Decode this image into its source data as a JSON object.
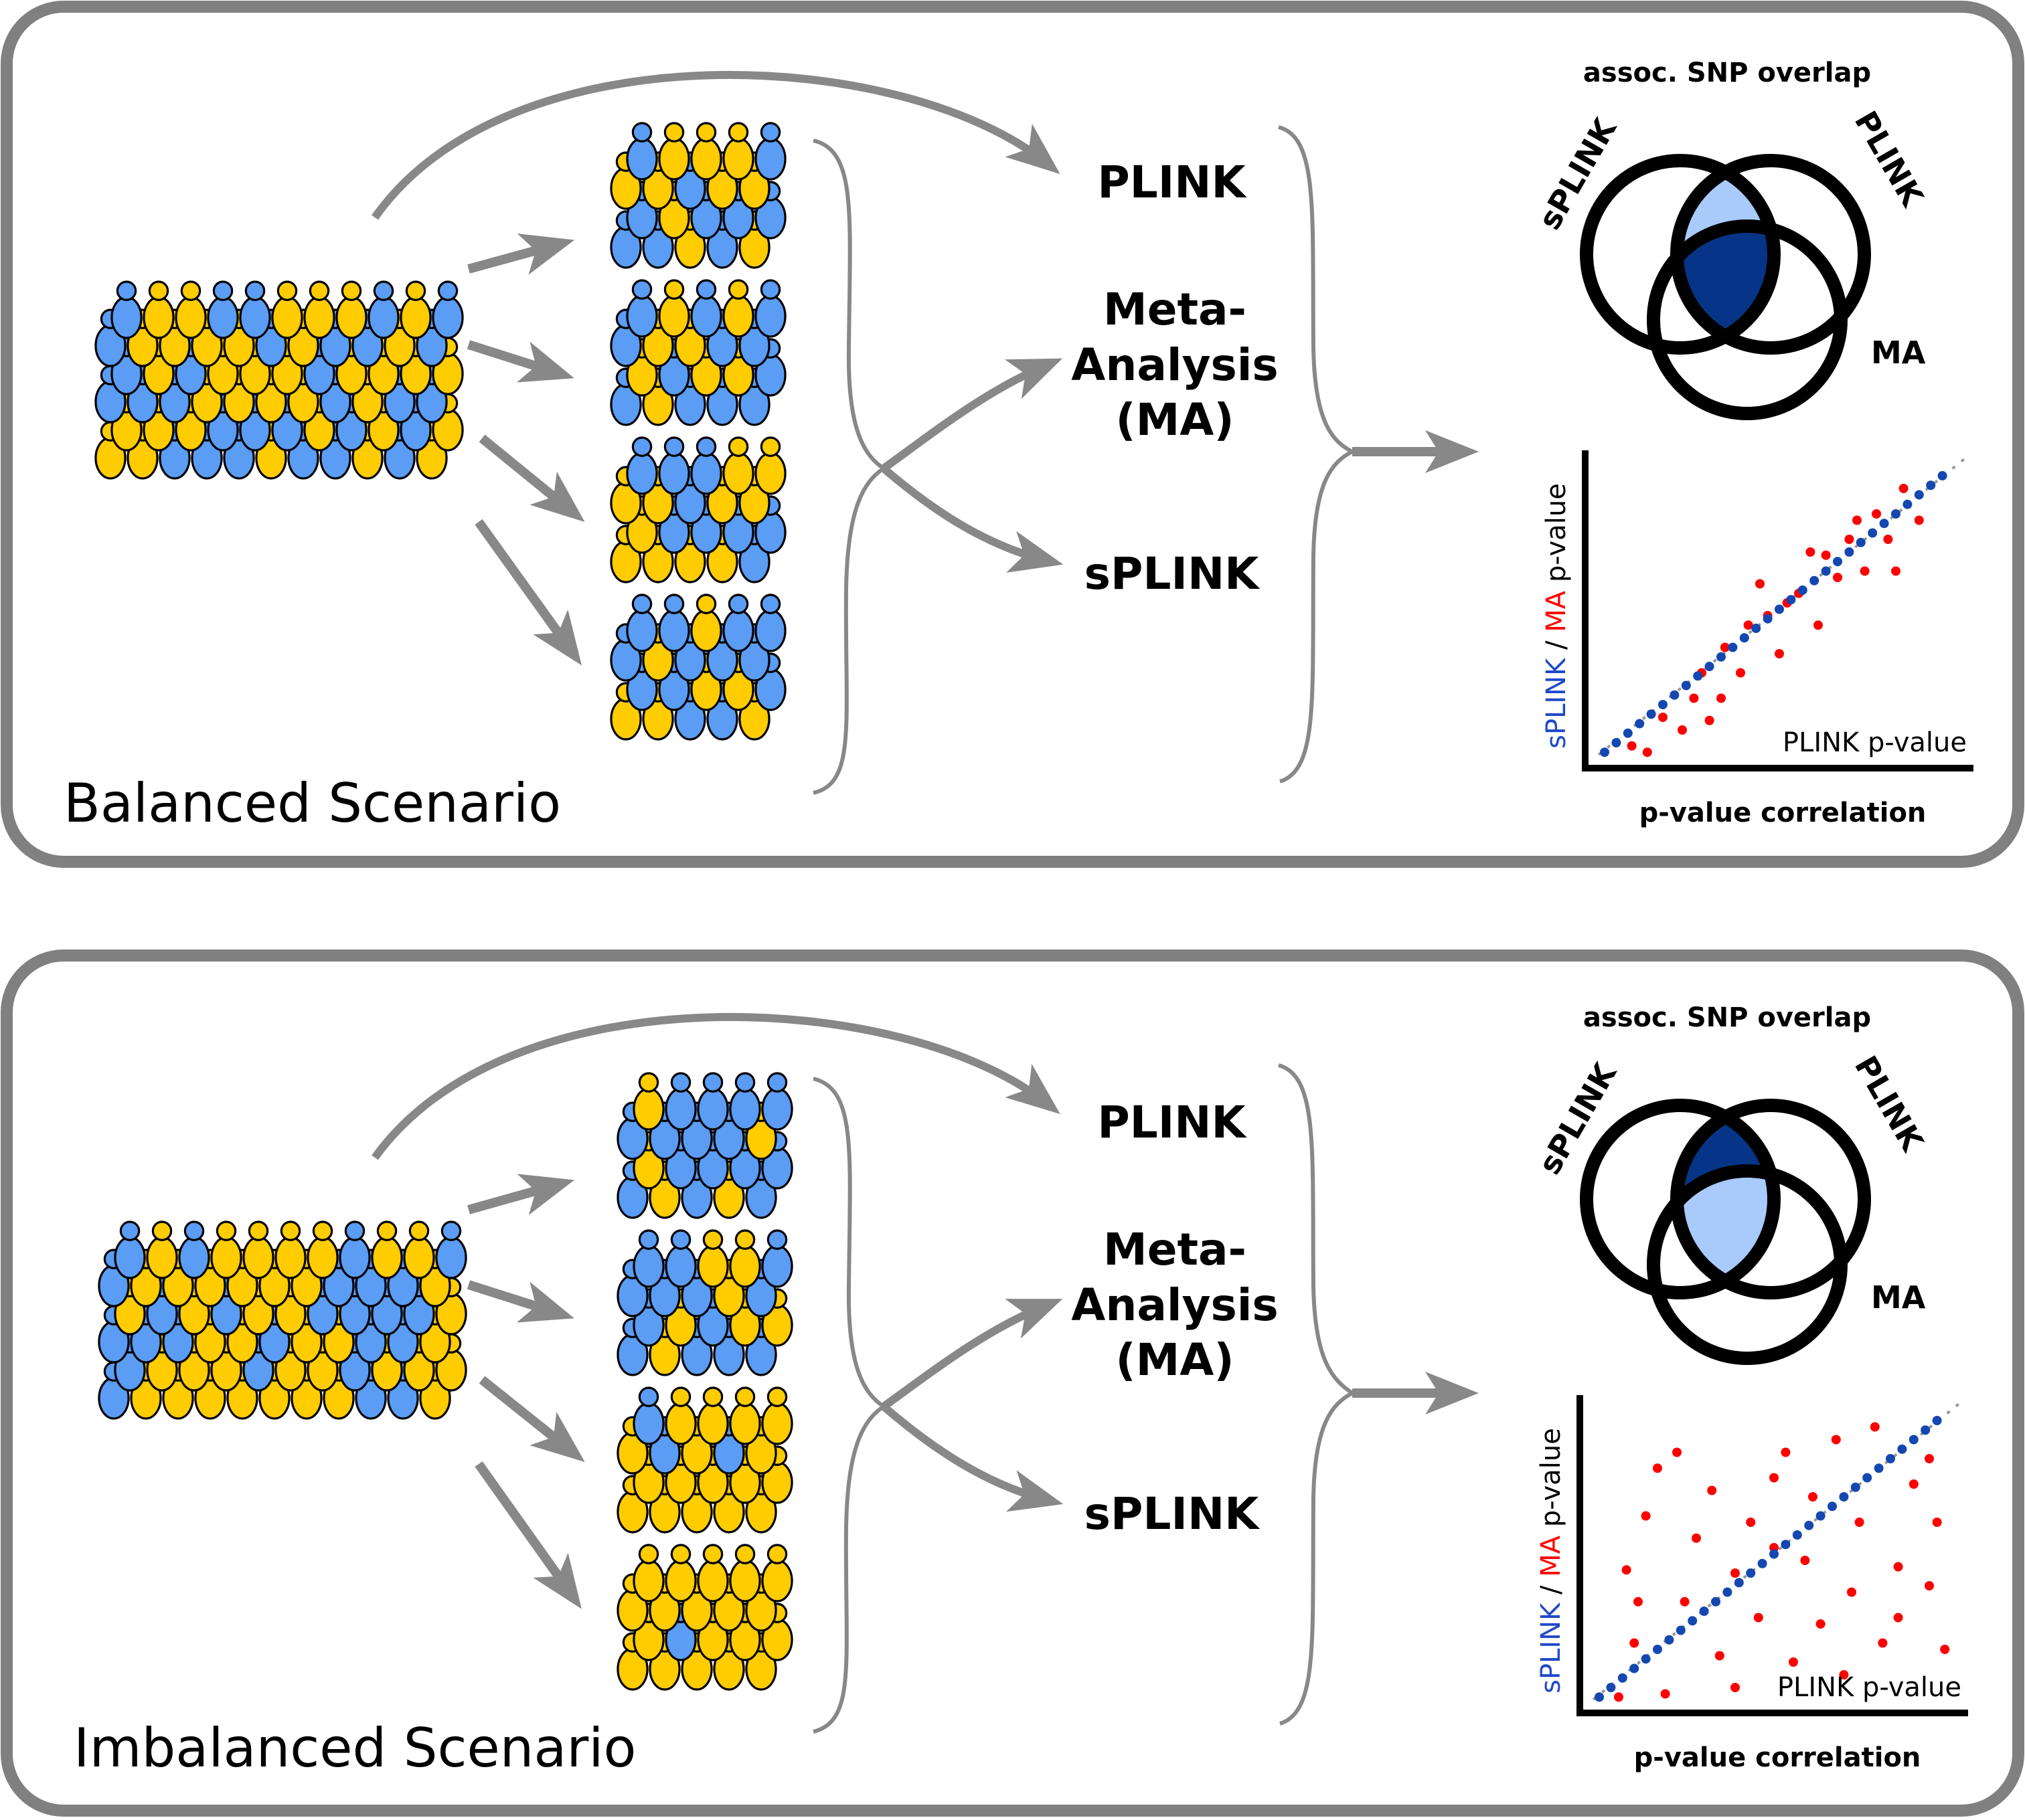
{
  "colors": {
    "frame": "#808080",
    "arrow": "#888888",
    "brace": "#888888",
    "blue_person": "#5b9cf4",
    "yellow_person": "#ffcc00",
    "outline": "#000000",
    "venn_light": "#a9cbfb",
    "venn_dark": "#063587",
    "splink_text": "#1f49c9",
    "ma_text": "#ff0000",
    "blue_dot": "#1448b0",
    "red_dot": "#ff0000"
  },
  "panels": [
    {
      "id": "balanced",
      "scenario_label": "Balanced Scenario",
      "methods": {
        "plink": "PLINK",
        "ma_line1": "Meta-",
        "ma_line2": "Analysis",
        "ma_line3": "(MA)",
        "splink": "sPLINK"
      },
      "venn": {
        "title": "assoc. SNP overlap",
        "label_splink": "sPLINK",
        "label_plink": "PLINK",
        "label_ma": "MA",
        "fills": {
          "splink_plink_only": "light",
          "all_three": "dark"
        }
      },
      "scatter": {
        "ylabel_part1": "sPLINK",
        "ylabel_part2": " / ",
        "ylabel_part3": "MA",
        "ylabel_part4": " p-value",
        "xlabel": "PLINK p-value",
        "caption": "p-value correlation",
        "splink_points": [
          [
            0.05,
            0.05
          ],
          [
            0.08,
            0.08
          ],
          [
            0.11,
            0.11
          ],
          [
            0.14,
            0.14
          ],
          [
            0.17,
            0.17
          ],
          [
            0.2,
            0.2
          ],
          [
            0.23,
            0.23
          ],
          [
            0.26,
            0.26
          ],
          [
            0.29,
            0.29
          ],
          [
            0.32,
            0.32
          ],
          [
            0.35,
            0.35
          ],
          [
            0.38,
            0.38
          ],
          [
            0.41,
            0.41
          ],
          [
            0.44,
            0.44
          ],
          [
            0.47,
            0.47
          ],
          [
            0.5,
            0.5
          ],
          [
            0.53,
            0.53
          ],
          [
            0.56,
            0.56
          ],
          [
            0.59,
            0.59
          ],
          [
            0.62,
            0.62
          ],
          [
            0.65,
            0.65
          ],
          [
            0.68,
            0.68
          ],
          [
            0.71,
            0.71
          ],
          [
            0.74,
            0.74
          ],
          [
            0.77,
            0.77
          ],
          [
            0.8,
            0.8
          ],
          [
            0.83,
            0.83
          ],
          [
            0.86,
            0.86
          ],
          [
            0.89,
            0.89
          ],
          [
            0.92,
            0.92
          ]
        ],
        "ma_points": [
          [
            0.12,
            0.07
          ],
          [
            0.16,
            0.05
          ],
          [
            0.2,
            0.16
          ],
          [
            0.25,
            0.12
          ],
          [
            0.28,
            0.22
          ],
          [
            0.32,
            0.15
          ],
          [
            0.3,
            0.3
          ],
          [
            0.36,
            0.38
          ],
          [
            0.4,
            0.3
          ],
          [
            0.42,
            0.45
          ],
          [
            0.45,
            0.58
          ],
          [
            0.47,
            0.48
          ],
          [
            0.5,
            0.36
          ],
          [
            0.52,
            0.52
          ],
          [
            0.55,
            0.55
          ],
          [
            0.6,
            0.45
          ],
          [
            0.62,
            0.67
          ],
          [
            0.65,
            0.6
          ],
          [
            0.68,
            0.72
          ],
          [
            0.7,
            0.78
          ],
          [
            0.72,
            0.62
          ],
          [
            0.75,
            0.8
          ],
          [
            0.78,
            0.72
          ],
          [
            0.82,
            0.88
          ],
          [
            0.86,
            0.78
          ],
          [
            0.58,
            0.68
          ],
          [
            0.35,
            0.22
          ],
          [
            0.8,
            0.62
          ]
        ]
      }
    },
    {
      "id": "imbalanced",
      "scenario_label": "Imbalanced Scenario",
      "methods": {
        "plink": "PLINK",
        "ma_line1": "Meta-",
        "ma_line2": "Analysis",
        "ma_line3": "(MA)",
        "splink": "sPLINK"
      },
      "venn": {
        "title": "assoc. SNP overlap",
        "label_splink": "sPLINK",
        "label_plink": "PLINK",
        "label_ma": "MA",
        "fills": {
          "splink_plink_only": "dark",
          "all_three": "light"
        }
      },
      "scatter": {
        "ylabel_part1": "sPLINK",
        "ylabel_part2": " / ",
        "ylabel_part3": "MA",
        "ylabel_part4": " p-value",
        "xlabel": "PLINK p-value",
        "caption": "p-value correlation",
        "splink_points": [
          [
            0.05,
            0.05
          ],
          [
            0.08,
            0.08
          ],
          [
            0.11,
            0.11
          ],
          [
            0.14,
            0.14
          ],
          [
            0.17,
            0.17
          ],
          [
            0.2,
            0.2
          ],
          [
            0.23,
            0.23
          ],
          [
            0.26,
            0.26
          ],
          [
            0.29,
            0.29
          ],
          [
            0.32,
            0.32
          ],
          [
            0.35,
            0.35
          ],
          [
            0.38,
            0.38
          ],
          [
            0.41,
            0.41
          ],
          [
            0.44,
            0.44
          ],
          [
            0.47,
            0.47
          ],
          [
            0.5,
            0.5
          ],
          [
            0.53,
            0.53
          ],
          [
            0.56,
            0.56
          ],
          [
            0.59,
            0.59
          ],
          [
            0.62,
            0.62
          ],
          [
            0.65,
            0.65
          ],
          [
            0.68,
            0.68
          ],
          [
            0.71,
            0.71
          ],
          [
            0.74,
            0.74
          ],
          [
            0.77,
            0.77
          ],
          [
            0.8,
            0.8
          ],
          [
            0.83,
            0.83
          ],
          [
            0.86,
            0.86
          ],
          [
            0.89,
            0.89
          ],
          [
            0.92,
            0.92
          ]
        ],
        "ma_points": [
          [
            0.1,
            0.05
          ],
          [
            0.22,
            0.06
          ],
          [
            0.14,
            0.22
          ],
          [
            0.12,
            0.45
          ],
          [
            0.17,
            0.62
          ],
          [
            0.2,
            0.77
          ],
          [
            0.27,
            0.35
          ],
          [
            0.3,
            0.55
          ],
          [
            0.34,
            0.7
          ],
          [
            0.36,
            0.18
          ],
          [
            0.4,
            0.44
          ],
          [
            0.44,
            0.6
          ],
          [
            0.46,
            0.3
          ],
          [
            0.5,
            0.74
          ],
          [
            0.53,
            0.82
          ],
          [
            0.55,
            0.16
          ],
          [
            0.58,
            0.48
          ],
          [
            0.6,
            0.68
          ],
          [
            0.62,
            0.28
          ],
          [
            0.66,
            0.86
          ],
          [
            0.7,
            0.38
          ],
          [
            0.72,
            0.6
          ],
          [
            0.76,
            0.9
          ],
          [
            0.78,
            0.22
          ],
          [
            0.82,
            0.46
          ],
          [
            0.86,
            0.72
          ],
          [
            0.9,
            0.4
          ],
          [
            0.92,
            0.6
          ],
          [
            0.94,
            0.2
          ],
          [
            0.25,
            0.82
          ],
          [
            0.4,
            0.08
          ],
          [
            0.68,
            0.12
          ],
          [
            0.82,
            0.3
          ],
          [
            0.5,
            0.52
          ],
          [
            0.15,
            0.35
          ],
          [
            0.9,
            0.8
          ]
        ]
      }
    }
  ]
}
